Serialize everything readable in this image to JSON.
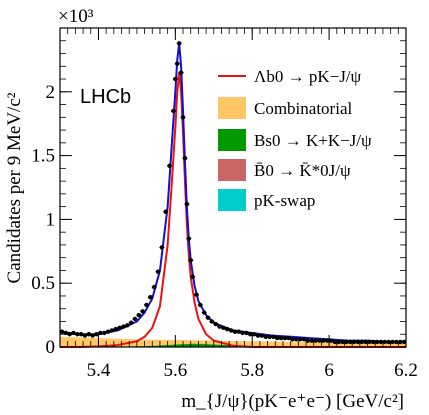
{
  "chart_data": {
    "type": "line",
    "experiment_label": "LHCb",
    "xlabel": "m_{J/ψ}(pK⁻e⁺e⁻) [GeV/c²]",
    "ylabel": "Candidates per 9 MeV/c²",
    "y_multiplier": "×10³",
    "xlim": [
      5.3,
      6.2
    ],
    "ylim": [
      0,
      2.5
    ],
    "x_ticks": [
      5.4,
      5.6,
      5.8,
      6.0,
      6.2
    ],
    "x_tick_labels": [
      "5.4",
      "5.6",
      "5.8",
      "6",
      "6.2"
    ],
    "y_ticks": [
      0,
      0.5,
      1.0,
      1.5,
      2.0
    ],
    "y_tick_labels": [
      "0",
      "0.5",
      "1",
      "1.5",
      "2"
    ],
    "legend": [
      {
        "label": "Λb0 → pK−J/ψ",
        "kind": "line",
        "color": "#ee1111"
      },
      {
        "label": "Combinatorial",
        "kind": "fill",
        "color": "#ffc766"
      },
      {
        "label": "Bs0 → K+K−J/ψ",
        "kind": "fill",
        "color": "#009900"
      },
      {
        "label": "B̄0 → K̄*0J/ψ",
        "kind": "fill",
        "color": "#cc6666"
      },
      {
        "label": "pK-swap",
        "kind": "fill",
        "color": "#00cccc"
      }
    ],
    "colors": {
      "total_fit": "#1111cc",
      "signal": "#ee1111",
      "data": "#000000"
    },
    "series": [
      {
        "name": "Data",
        "kind": "points",
        "x": [
          5.305,
          5.315,
          5.325,
          5.335,
          5.345,
          5.355,
          5.365,
          5.375,
          5.385,
          5.395,
          5.405,
          5.415,
          5.425,
          5.435,
          5.445,
          5.455,
          5.465,
          5.475,
          5.485,
          5.495,
          5.505,
          5.515,
          5.525,
          5.535,
          5.545,
          5.555,
          5.565,
          5.575,
          5.585,
          5.595,
          5.6,
          5.605,
          5.61,
          5.615,
          5.62,
          5.625,
          5.63,
          5.635,
          5.64,
          5.645,
          5.655,
          5.665,
          5.675,
          5.685,
          5.695,
          5.705,
          5.715,
          5.725,
          5.735,
          5.745,
          5.755,
          5.765,
          5.775,
          5.785,
          5.795,
          5.805,
          5.815,
          5.825,
          5.835,
          5.845,
          5.855,
          5.865,
          5.875,
          5.885,
          5.895,
          5.905,
          5.915,
          5.925,
          5.935,
          5.945,
          5.955,
          5.965,
          5.975,
          5.985,
          5.995,
          6.005,
          6.015,
          6.025,
          6.035,
          6.045,
          6.055,
          6.065,
          6.075,
          6.085,
          6.095,
          6.105,
          6.115,
          6.125,
          6.135,
          6.145,
          6.155,
          6.165,
          6.175,
          6.185,
          6.195
        ],
        "y": [
          0.12,
          0.11,
          0.1,
          0.11,
          0.1,
          0.1,
          0.09,
          0.1,
          0.09,
          0.1,
          0.11,
          0.11,
          0.12,
          0.13,
          0.14,
          0.15,
          0.16,
          0.17,
          0.19,
          0.22,
          0.25,
          0.28,
          0.33,
          0.39,
          0.47,
          0.59,
          0.78,
          1.06,
          1.42,
          1.85,
          2.1,
          2.22,
          2.38,
          2.15,
          1.8,
          1.48,
          1.12,
          0.85,
          0.68,
          0.55,
          0.41,
          0.33,
          0.27,
          0.23,
          0.2,
          0.18,
          0.16,
          0.15,
          0.14,
          0.13,
          0.12,
          0.12,
          0.11,
          0.11,
          0.1,
          0.1,
          0.09,
          0.09,
          0.08,
          0.08,
          0.08,
          0.07,
          0.07,
          0.07,
          0.07,
          0.06,
          0.06,
          0.06,
          0.06,
          0.05,
          0.05,
          0.05,
          0.05,
          0.05,
          0.05,
          0.05,
          0.04,
          0.04,
          0.04,
          0.04,
          0.04,
          0.04,
          0.04,
          0.04,
          0.04,
          0.04,
          0.04,
          0.04,
          0.04,
          0.04,
          0.04,
          0.04,
          0.04,
          0.04,
          0.04
        ]
      },
      {
        "name": "Total fit",
        "kind": "line",
        "x": [
          5.3,
          5.35,
          5.4,
          5.45,
          5.5,
          5.52,
          5.54,
          5.56,
          5.58,
          5.59,
          5.6,
          5.605,
          5.61,
          5.615,
          5.62,
          5.625,
          5.63,
          5.635,
          5.64,
          5.65,
          5.66,
          5.68,
          5.7,
          5.75,
          5.8,
          5.85,
          5.9,
          5.95,
          6.0,
          6.05,
          6.1,
          6.15,
          6.2
        ],
        "y": [
          0.12,
          0.1,
          0.1,
          0.13,
          0.2,
          0.27,
          0.38,
          0.6,
          1.1,
          1.55,
          2.0,
          2.25,
          2.38,
          2.2,
          1.85,
          1.45,
          1.1,
          0.85,
          0.68,
          0.48,
          0.36,
          0.25,
          0.19,
          0.13,
          0.11,
          0.09,
          0.08,
          0.07,
          0.06,
          0.05,
          0.05,
          0.04,
          0.04
        ]
      },
      {
        "name": "Λb0 → pK−J/ψ",
        "kind": "line",
        "x": [
          5.3,
          5.35,
          5.4,
          5.45,
          5.5,
          5.52,
          5.54,
          5.56,
          5.58,
          5.59,
          5.6,
          5.605,
          5.61,
          5.615,
          5.62,
          5.625,
          5.63,
          5.635,
          5.64,
          5.65,
          5.66,
          5.68,
          5.7,
          5.75,
          5.8,
          5.85,
          5.9,
          5.95,
          6.0,
          6.05,
          6.1,
          6.15,
          6.2
        ],
        "y": [
          0.0,
          0.0,
          0.005,
          0.015,
          0.045,
          0.08,
          0.15,
          0.32,
          0.8,
          1.25,
          1.72,
          2.0,
          2.15,
          2.0,
          1.68,
          1.3,
          0.96,
          0.72,
          0.55,
          0.35,
          0.22,
          0.1,
          0.05,
          0.01,
          0.0,
          0.0,
          0.0,
          0.0,
          0.0,
          0.0,
          0.0,
          0.0,
          0.0
        ]
      },
      {
        "name": "Combinatorial",
        "kind": "area",
        "x": [
          5.3,
          5.4,
          5.5,
          5.6,
          5.7,
          5.8,
          5.9,
          6.0,
          6.1,
          6.2
        ],
        "y": [
          0.08,
          0.07,
          0.06,
          0.055,
          0.05,
          0.045,
          0.04,
          0.035,
          0.035,
          0.03
        ]
      },
      {
        "name": "Bs0 → K+K−J/ψ",
        "kind": "area",
        "x": [
          5.3,
          5.4,
          5.5,
          5.55,
          5.6,
          5.65,
          5.7,
          5.75,
          5.8,
          5.85,
          5.9
        ],
        "y": [
          0.0,
          0.0,
          0.005,
          0.01,
          0.02,
          0.025,
          0.02,
          0.012,
          0.005,
          0.002,
          0.0
        ]
      },
      {
        "name": "B̄0 → K̄*0J/ψ",
        "kind": "area",
        "x": [
          5.3,
          5.4,
          5.5,
          5.6,
          5.7,
          5.8
        ],
        "y": [
          0.0,
          0.003,
          0.004,
          0.004,
          0.003,
          0.0
        ]
      },
      {
        "name": "pK-swap",
        "kind": "area",
        "x": [
          5.3,
          5.5,
          5.7,
          5.9,
          6.2
        ],
        "y": [
          0.0,
          0.002,
          0.002,
          0.001,
          0.0
        ]
      }
    ]
  }
}
